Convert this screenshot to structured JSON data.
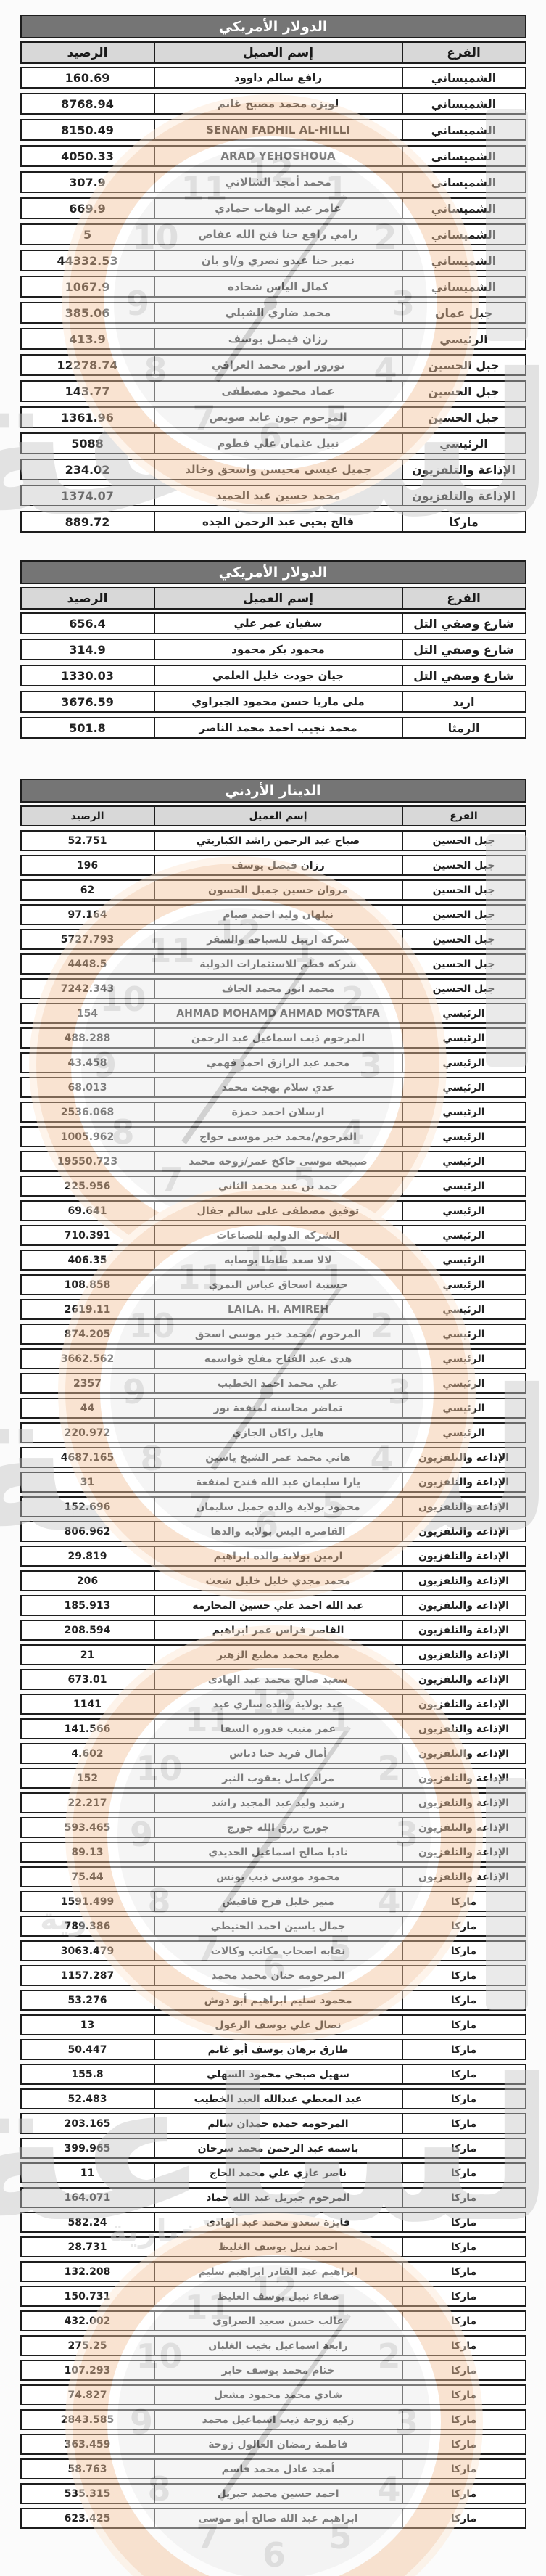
{
  "watermark": {
    "big_text": "الساعة",
    "small_text": "الإخبارية",
    "clock_numbers": [
      12,
      1,
      2,
      3,
      4,
      5,
      6,
      7,
      8,
      9,
      10,
      11
    ]
  },
  "tables": [
    {
      "title": "الدولار الأمريكي",
      "headers": {
        "balance": "الرصيد",
        "client": "إسم العميل",
        "branch": "الفرع"
      },
      "rows": [
        {
          "balance": "160.69",
          "client": "رافع سالم داوود",
          "branch": "الشميساني"
        },
        {
          "balance": "8768.94",
          "client": "لويزه محمد مصبح غانم",
          "branch": "الشميساني"
        },
        {
          "balance": "8150.49",
          "client": "SENAN FADHIL AL-HILLI",
          "branch": "الشميساني"
        },
        {
          "balance": "4050.33",
          "client": "ARAD YEHOSHOUA",
          "branch": "الشميساني"
        },
        {
          "balance": "307.9",
          "client": "محمد أمجد الشالاتي",
          "branch": "الشميساني"
        },
        {
          "balance": "669.9",
          "client": "عامر عبد الوهاب حمادي",
          "branch": "الشميساني"
        },
        {
          "balance": "5",
          "client": "رامي رافع حنا فتح الله عفاص",
          "branch": "الشميساني"
        },
        {
          "balance": "44332.53",
          "client": "نمير حنا عبدو نصري و/او بان",
          "branch": "الشميساني"
        },
        {
          "balance": "1067.9",
          "client": "كمال الياس شحاده",
          "branch": "الشميساني"
        },
        {
          "balance": "385.06",
          "client": "محمد ضاري الشبلي",
          "branch": "جبل عمان"
        },
        {
          "balance": "413.9",
          "client": "رزان فيصل يوسف",
          "branch": "الرئيسي"
        },
        {
          "balance": "12278.74",
          "client": "نوروز انور محمد العراقي",
          "branch": "جبل الحسين"
        },
        {
          "balance": "143.77",
          "client": "عماد محمود مصطفى",
          "branch": "جبل الحسين"
        },
        {
          "balance": "1361.96",
          "client": "المرحوم جون عايد صويص",
          "branch": "جبل الحسين"
        },
        {
          "balance": "5088",
          "client": "نبيل عثمان علي فطوم",
          "branch": "الرئيسي"
        },
        {
          "balance": "234.02",
          "client": "جميل عيسى محيسن واسحق وخالد",
          "branch": "الإذاعة والتلفزيون"
        },
        {
          "balance": "1374.07",
          "client": "محمد حسين عبد الحميد",
          "branch": "الإذاعة والتلفزيون"
        },
        {
          "balance": "889.72",
          "client": "فالح يحيى عبد الرحمن الجده",
          "branch": "ماركا"
        }
      ]
    },
    {
      "title": "الدولار الأمريكي",
      "headers": {
        "balance": "الرصيد",
        "client": "إسم العميل",
        "branch": "الفرع"
      },
      "rows": [
        {
          "balance": "656.4",
          "client": "سفيان عمر علي",
          "branch": "شارع وصفي التل"
        },
        {
          "balance": "314.9",
          "client": "محمود بكر محمود",
          "branch": "شارع وصفي التل"
        },
        {
          "balance": "1330.03",
          "client": "جيان جودت خليل العلمي",
          "branch": "شارع وصفي التل"
        },
        {
          "balance": "3676.59",
          "client": "ملى ماريا حسن محمود الجبراوي",
          "branch": "اربد"
        },
        {
          "balance": "501.8",
          "client": "محمد نجيب احمد محمد الناصر",
          "branch": "الرمثا"
        }
      ]
    },
    {
      "title": "الدينار الأردني",
      "headers": {
        "balance": "الرصيد",
        "client": "إسم العميل",
        "branch": "الفرع"
      },
      "rows": [
        {
          "balance": "52.751",
          "client": "صباح عبد الرحمن راشد الكباريتي",
          "branch": "جبل الحسين"
        },
        {
          "balance": "196",
          "client": "رزان فيصل يوسف",
          "branch": "جبل الحسين"
        },
        {
          "balance": "62",
          "client": "مروان حسين جميل الحسون",
          "branch": "جبل الحسين"
        },
        {
          "balance": "97.164",
          "client": "نيلهان وليد احمد صيام",
          "branch": "جبل الحسين"
        },
        {
          "balance": "5727.793",
          "client": "شركه اربيل للسياحة والسفر",
          "branch": "جبل الحسين"
        },
        {
          "balance": "4448.5",
          "client": "شركه فطم للاستثمارات الدولية",
          "branch": "جبل الحسين"
        },
        {
          "balance": "7242.343",
          "client": "محمد انور محمد الجاف",
          "branch": "جبل الحسين"
        },
        {
          "balance": "154",
          "client": "AHMAD MOHAMD AHMAD MOSTAFA",
          "branch": "الرئيسي"
        },
        {
          "balance": "488.288",
          "client": "المرحوم ذيب اسماعيل عبد الرحمن",
          "branch": "الرئيسي"
        },
        {
          "balance": "43.458",
          "client": "محمد عبد الرازق احمد فهمي",
          "branch": "الرئيسي"
        },
        {
          "balance": "68.013",
          "client": "عدي سلام بهجت محمد",
          "branch": "الرئيسي"
        },
        {
          "balance": "2536.068",
          "client": "ارسلان احمد حمزة",
          "branch": "الرئيسي"
        },
        {
          "balance": "1005.962",
          "client": "المرحوم/محمد خير موسى خواج",
          "branch": "الرئيسي"
        },
        {
          "balance": "19550.723",
          "client": "صبيحه موسى حاكخ عمر/زوجه محمد",
          "branch": "الرئيسي"
        },
        {
          "balance": "225.956",
          "client": "حمد بن عبد محمد الثاني",
          "branch": "الرئيسي"
        },
        {
          "balance": "69.641",
          "client": "توفيق مصطفى على سالم جفال",
          "branch": "الرئيسي"
        },
        {
          "balance": "710.391",
          "client": "الشركة الدولية للصناعات",
          "branch": "الرئيسي"
        },
        {
          "balance": "406.35",
          "client": "لالا سعد طاظا بوصايه",
          "branch": "الرئيسي"
        },
        {
          "balance": "108.858",
          "client": "حسنية اسحاق عباس النمري",
          "branch": "الرئيسي"
        },
        {
          "balance": "2619.11",
          "client": "LAILA. H. AMIREH",
          "branch": "الرئيسي"
        },
        {
          "balance": "874.205",
          "client": "المرحوم /محمد خير موسى اسحق",
          "branch": "الرئيسي"
        },
        {
          "balance": "3662.562",
          "client": "هدى عبد الفتاح مفلح قواسمه",
          "branch": "الرئيسي"
        },
        {
          "balance": "2357",
          "client": "علي محمد احمد الخطيب",
          "branch": "الرئيسي"
        },
        {
          "balance": "44",
          "client": "تماضر محاسنه لمنفعة نور",
          "branch": "الرئيسي"
        },
        {
          "balance": "220.972",
          "client": "هايل راكان الجازي",
          "branch": "الرئيسي"
        },
        {
          "balance": "4687.165",
          "client": "هاني محمد عمر الشيخ ياسين",
          "branch": "الإذاعة والتلفزيون"
        },
        {
          "balance": "31",
          "client": "يارا سليمان عبد الله فندح لمنفعة",
          "branch": "الإذاعة والتلفزيون"
        },
        {
          "balance": "152.696",
          "client": "محمود بولاية والده جميل سليمان",
          "branch": "الإذاعة والتلفزيون"
        },
        {
          "balance": "806.962",
          "client": "القاصرة اليس بولاية والدها",
          "branch": "الإذاعة والتلفزيون"
        },
        {
          "balance": "29.819",
          "client": "ارمين بولاية والده ابراهيم",
          "branch": "الإذاعة والتلفزيون"
        },
        {
          "balance": "206",
          "client": "محمد مجدي خليل خليل شعث",
          "branch": "الإذاعة والتلفزيون"
        },
        {
          "balance": "185.913",
          "client": "عبد الله احمد علي حسين المحارمه",
          "branch": "الإذاعة والتلفزيون"
        },
        {
          "balance": "208.594",
          "client": "القاصر فراس عمر ابراهيم",
          "branch": "الإذاعة والتلفزيون"
        },
        {
          "balance": "21",
          "client": "مطيع محمد مطيع الزهير",
          "branch": "الإذاعة والتلفزيون"
        },
        {
          "balance": "673.01",
          "client": "سعيد صالح محمد عبد الهادى",
          "branch": "الإذاعة والتلفزيون"
        },
        {
          "balance": "1141",
          "client": "عيد بولاية والده ساري عيد",
          "branch": "الإذاعة والتلفزيون"
        },
        {
          "balance": "141.566",
          "client": "عمر منيب قدوره السقا",
          "branch": "الإذاعة والتلفزيون"
        },
        {
          "balance": "4.602",
          "client": "أمال فريد حنا دباس",
          "branch": "الإذاعة والتلفزيون"
        },
        {
          "balance": "152",
          "client": "مراد كامل يعقوب النبر",
          "branch": "الإذاعة والتلفزيون"
        },
        {
          "balance": "22.217",
          "client": "رشيد وليد عبد المجيد راشد",
          "branch": "الإذاعة والتلفزيون"
        },
        {
          "balance": "593.465",
          "client": "جورج رزق الله جورج",
          "branch": "الإذاعة والتلفزيون"
        },
        {
          "balance": "89.13",
          "client": "ناديا صالح اسماعيل الحديدي",
          "branch": "الإذاعة والتلفزيون"
        },
        {
          "balance": "75.44",
          "client": "محمود موسى ذيب يونس",
          "branch": "الإذاعة والتلفزيون"
        },
        {
          "balance": "1591.499",
          "client": "منير خليل فرح قاقيش",
          "branch": "ماركا"
        },
        {
          "balance": "789.386",
          "client": "جمال ياسين احمد الحنيطي",
          "branch": "ماركا"
        },
        {
          "balance": "3063.479",
          "client": "نقابه اصحاب مكاتب وكالات",
          "branch": "ماركا"
        },
        {
          "balance": "1157.287",
          "client": "المرحومة حنان محمد محمد",
          "branch": "ماركا"
        },
        {
          "balance": "53.276",
          "client": "محمود سليم ابراهيم أبو دوش",
          "branch": "ماركا"
        },
        {
          "balance": "13",
          "client": "نضال علي يوسف الزغول",
          "branch": "ماركا"
        },
        {
          "balance": "50.447",
          "client": "طارق برهان يوسف أبو غانم",
          "branch": "ماركا"
        },
        {
          "balance": "155.8",
          "client": "سهيل صبحي محمود السهلي",
          "branch": "ماركا"
        },
        {
          "balance": "52.483",
          "client": "عبد المعطي عبدالله العبد الخطيب",
          "branch": "ماركا"
        },
        {
          "balance": "203.165",
          "client": "المرحومة حمده حمدان سالم",
          "branch": "ماركا"
        },
        {
          "balance": "399.965",
          "client": "باسمه عبد الرحمن محمد سرحان",
          "branch": "ماركا"
        },
        {
          "balance": "11",
          "client": "ناصر غازي علي محمد الحاج",
          "branch": "ماركا"
        },
        {
          "balance": "164.071",
          "client": "المرحوم جبريل عبد الله حماد",
          "branch": "ماركا"
        },
        {
          "balance": "582.24",
          "client": "فايزة سعدو محمد عبد الهادى",
          "branch": "ماركا"
        },
        {
          "balance": "28.731",
          "client": "احمد نبيل يوسف الغليظ",
          "branch": "ماركا"
        },
        {
          "balance": "132.208",
          "client": "ابراهيم عبد القادر ابراهيم سليم",
          "branch": "ماركا"
        },
        {
          "balance": "150.731",
          "client": "صفاء نبيل يوسف الغليظ",
          "branch": "ماركا"
        },
        {
          "balance": "432.002",
          "client": "غالب حسن سعيد الصراوى",
          "branch": "ماركا"
        },
        {
          "balance": "275.25",
          "client": "رابعة اسماعيل بخيت الغلبان",
          "branch": "ماركا"
        },
        {
          "balance": "107.293",
          "client": "ختام محمد يوسف جابر",
          "branch": "ماركا"
        },
        {
          "balance": "74.827",
          "client": "شادي محمد محمود مشعل",
          "branch": "ماركا"
        },
        {
          "balance": "2843.585",
          "client": "زكيه زوجة ذيب اسماعيل محمد",
          "branch": "ماركا"
        },
        {
          "balance": "363.459",
          "client": "فاطمة رمضان العالول زوجة",
          "branch": "ماركا"
        },
        {
          "balance": "58.763",
          "client": "أمجد عادل محمد قاسم",
          "branch": "ماركا"
        },
        {
          "balance": "535.315",
          "client": "احمد حسين محمد جبريل",
          "branch": "ماركا"
        },
        {
          "balance": "623.425",
          "client": "ابراهيم عبد الله صالح أبو موسى",
          "branch": "ماركا"
        }
      ]
    }
  ]
}
